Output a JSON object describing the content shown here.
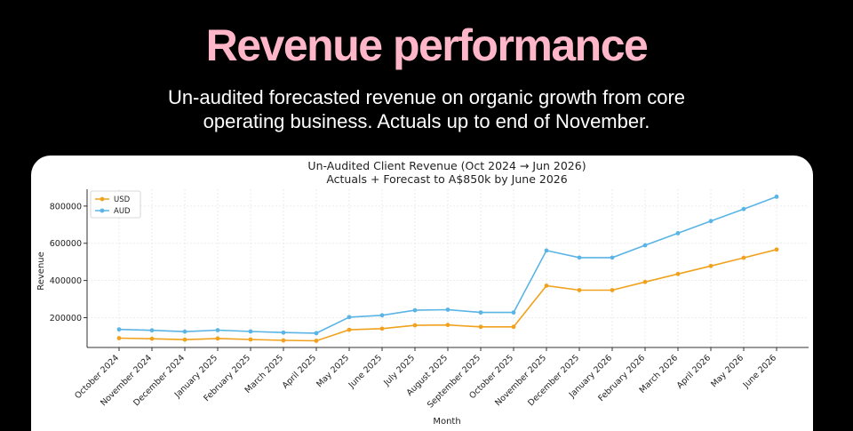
{
  "header": {
    "title": "Revenue performance",
    "subtitle_line1": "Un-audited forecasted revenue on organic growth from core",
    "subtitle_line2": "operating business. Actuals up to end of November."
  },
  "chart_data": {
    "type": "line",
    "title": "Un-Audited Client Revenue (Oct 2024 → Jun 2026)",
    "subtitle": "Actuals + Forecast to A$850k by June 2026",
    "xlabel": "Month",
    "ylabel": "Revenue",
    "ylim": [
      40000,
      890000
    ],
    "yticks": [
      200000,
      400000,
      600000,
      800000
    ],
    "grid": true,
    "legend_position": "top-left",
    "categories": [
      "October 2024",
      "November 2024",
      "December 2024",
      "January 2025",
      "February 2025",
      "March 2025",
      "April 2025",
      "May 2025",
      "June 2025",
      "July 2025",
      "August 2025",
      "September 2025",
      "October 2025",
      "November 2025",
      "December 2025",
      "January 2026",
      "February 2026",
      "March 2026",
      "April 2026",
      "May 2026",
      "June 2026"
    ],
    "series": [
      {
        "name": "USD",
        "color": "#f0a21f",
        "values": [
          90000,
          87000,
          82000,
          88000,
          83000,
          78000,
          76000,
          135000,
          141000,
          159000,
          161000,
          151000,
          151000,
          372000,
          348000,
          348000,
          392000,
          435000,
          478000,
          522000,
          566000
        ]
      },
      {
        "name": "AUD",
        "color": "#5ab4e5",
        "values": [
          137000,
          132000,
          125000,
          133000,
          126000,
          120000,
          117000,
          203000,
          213000,
          240000,
          243000,
          228000,
          228000,
          561000,
          523000,
          523000,
          589000,
          654000,
          719000,
          784000,
          850000
        ]
      }
    ]
  }
}
